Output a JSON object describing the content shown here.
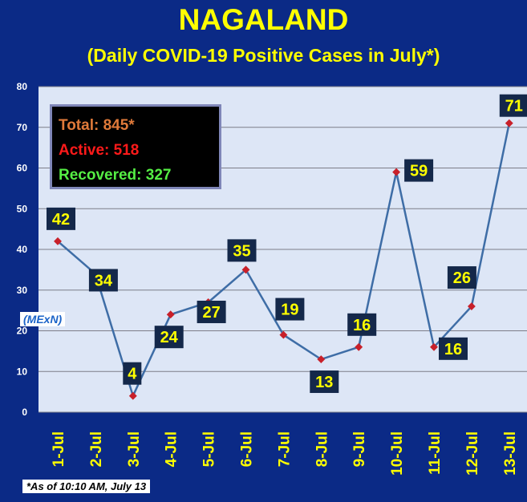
{
  "title": "NAGALAND",
  "subtitle": "(Daily COVID-19 Positive Cases in July*)",
  "stats": {
    "total": "Total: 845*",
    "active": "Active: 518",
    "recovered": "Recovered: 327"
  },
  "source_tag": "(MExN)",
  "footnote": "*As of 10:10 AM, July 13",
  "colors": {
    "background": "#0b2a86",
    "plot_area": "#dde6f6",
    "line": "#3e6da6",
    "marker": "#c8202a",
    "label_box": "#14284a",
    "label_text": "#ffff00",
    "title": "#ffff00"
  },
  "chart_data": {
    "type": "line",
    "categories": [
      "1-Jul",
      "2-Jul",
      "3-Jul",
      "4-Jul",
      "5-Jul",
      "6-Jul",
      "7-Jul",
      "8-Jul",
      "9-Jul",
      "10-Jul",
      "11-Jul",
      "12-Jul",
      "13-Jul"
    ],
    "values": [
      42,
      34,
      4,
      24,
      27,
      35,
      19,
      13,
      16,
      59,
      16,
      26,
      71
    ],
    "yticks": [
      0,
      10,
      20,
      30,
      40,
      50,
      60,
      70,
      80
    ],
    "ylim": [
      0,
      80
    ],
    "grid": true,
    "data_labels": true
  }
}
